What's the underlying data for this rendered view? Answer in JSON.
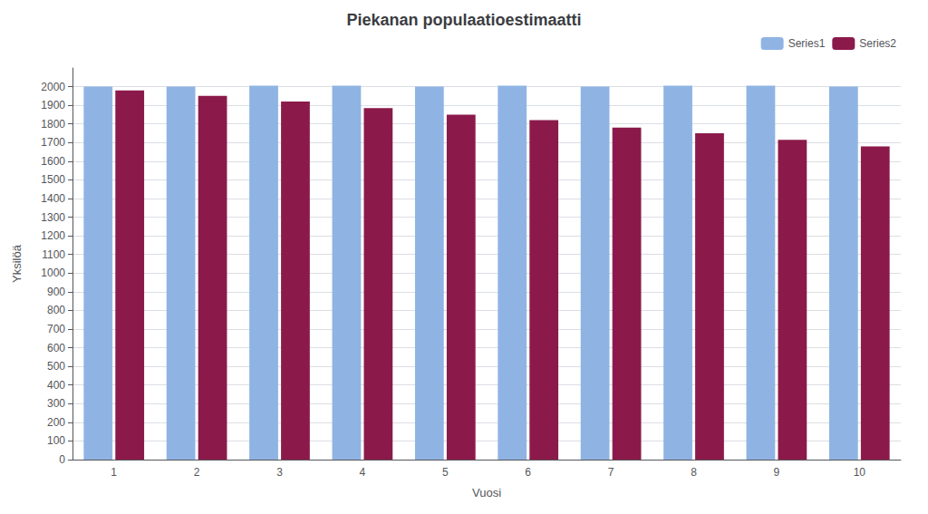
{
  "chart_data": {
    "type": "bar",
    "title": "Piekanan populaatioestimaatti",
    "xlabel": "Vuosi",
    "ylabel": "Yksilöä",
    "categories": [
      1,
      2,
      3,
      4,
      5,
      6,
      7,
      8,
      9,
      10
    ],
    "series": [
      {
        "name": "Series1",
        "color": "#8fb4e3",
        "values": [
          2000,
          2000,
          2005,
          2005,
          2000,
          2005,
          2000,
          2005,
          2005,
          2000
        ]
      },
      {
        "name": "Series2",
        "color": "#8b1a4a",
        "values": [
          1980,
          1950,
          1920,
          1885,
          1850,
          1820,
          1780,
          1750,
          1715,
          1680
        ]
      }
    ],
    "ylim": [
      0,
      2100
    ],
    "yticks": [
      0,
      100,
      200,
      300,
      400,
      500,
      600,
      700,
      800,
      900,
      1000,
      1100,
      1200,
      1300,
      1400,
      1500,
      1600,
      1700,
      1800,
      1900,
      2000
    ],
    "grid": true,
    "legend": "upper right"
  }
}
